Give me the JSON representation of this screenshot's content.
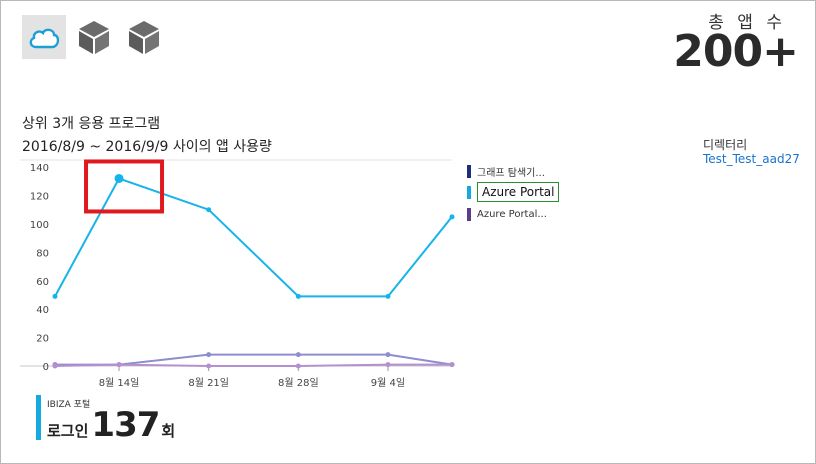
{
  "apps": {
    "items": [
      {
        "icon": "cloud-icon",
        "selected": true
      },
      {
        "icon": "cube-icon",
        "selected": false
      },
      {
        "icon": "cube-icon",
        "selected": false
      }
    ]
  },
  "total": {
    "label": "총 앱 수",
    "value": "200+"
  },
  "section": {
    "title": "상위 3개 응용 프로그램",
    "subtitle": "2016/8/9 ~ 2016/9/9 사이의 앱 사용량"
  },
  "directory": {
    "label": "디렉터리",
    "link": "Test_Test_aad27"
  },
  "legend": [
    {
      "label": "그래프 탐색기...",
      "color": "#1f2e7a"
    },
    {
      "label": "Azure Portal",
      "color": "#16a9e0",
      "selected": true
    },
    {
      "label": "Azure Portal...",
      "color": "#5a3e8a"
    }
  ],
  "chart_data": {
    "type": "line",
    "x": [
      "2016-08-09",
      "2016-08-14",
      "2016-08-21",
      "2016-08-28",
      "2016-09-04",
      "2016-09-09"
    ],
    "xticks": [
      "8월 14일",
      "8월 21일",
      "8월 28일",
      "9월 4일"
    ],
    "yticks": [
      "0",
      "20",
      "40",
      "60",
      "80",
      "100",
      "120",
      "140"
    ],
    "ylim": [
      0,
      145
    ],
    "series": [
      {
        "name": "그래프 탐색기...",
        "color": "#8d8dd0",
        "values": [
          1,
          1,
          8,
          8,
          8,
          1
        ]
      },
      {
        "name": "Azure Portal",
        "color": "#16b4ea",
        "values": [
          49,
          132,
          110,
          49,
          49,
          105
        ]
      },
      {
        "name": "Azure Portal...",
        "color": "#b58fcf",
        "values": [
          0,
          1,
          0,
          0,
          1,
          1
        ]
      }
    ],
    "highlight_point": {
      "series": "Azure Portal",
      "x": "2016-08-14",
      "y": 132
    }
  },
  "stat": {
    "label": "IBIZA 포털",
    "prefix": "로그인",
    "value": "137",
    "suffix": "회"
  }
}
